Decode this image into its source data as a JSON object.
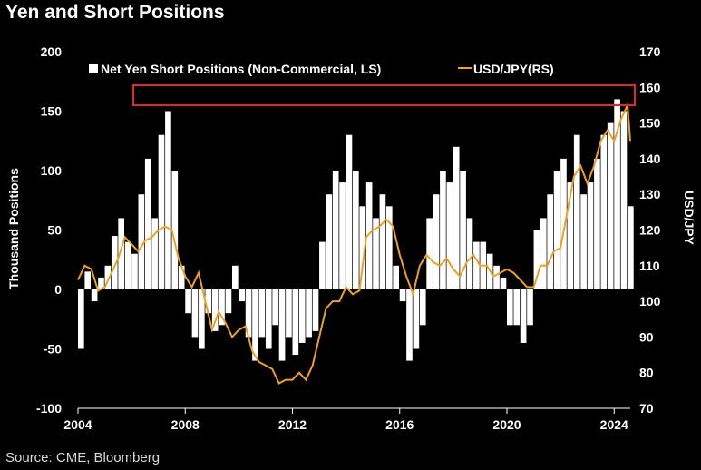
{
  "title": "Yen and Short Positions",
  "source": "Source: CME, Bloomberg",
  "colors": {
    "background": "#000000",
    "bars": "#ffffff",
    "line": "#f0a020",
    "highlight_box": "#e0282a"
  },
  "chart_data": {
    "type": "bar+line",
    "title": "Yen and Short Positions",
    "ylabel": "Thousand Positions",
    "y2label": "USD/JPY",
    "ylim": [
      -100,
      200
    ],
    "y_ticks": [
      "200",
      "150",
      "100",
      "50",
      "0",
      "-50",
      "-100"
    ],
    "y2lim": [
      70,
      170
    ],
    "y2_ticks": [
      "170",
      "160",
      "150",
      "140",
      "130",
      "120",
      "110",
      "100",
      "90",
      "80",
      "70"
    ],
    "xlim": [
      2004,
      2024.6
    ],
    "x_ticks": [
      "2004",
      "2008",
      "2012",
      "2016",
      "2020",
      "2024"
    ],
    "legend_position": "top",
    "grid": false,
    "series": [
      {
        "name": "Net Yen Short Positions (Non-Commercial, LS)",
        "type": "bar",
        "axis": "left",
        "x": [
          2004.0,
          2004.25,
          2004.5,
          2004.75,
          2005.0,
          2005.25,
          2005.5,
          2005.75,
          2006.0,
          2006.25,
          2006.5,
          2006.75,
          2007.0,
          2007.25,
          2007.5,
          2007.75,
          2008.0,
          2008.25,
          2008.5,
          2008.75,
          2009.0,
          2009.25,
          2009.5,
          2009.75,
          2010.0,
          2010.25,
          2010.5,
          2010.75,
          2011.0,
          2011.25,
          2011.5,
          2011.75,
          2012.0,
          2012.25,
          2012.5,
          2012.75,
          2013.0,
          2013.25,
          2013.5,
          2013.75,
          2014.0,
          2014.25,
          2014.5,
          2014.75,
          2015.0,
          2015.25,
          2015.5,
          2015.75,
          2016.0,
          2016.25,
          2016.5,
          2016.75,
          2017.0,
          2017.25,
          2017.5,
          2017.75,
          2018.0,
          2018.25,
          2018.5,
          2018.75,
          2019.0,
          2019.25,
          2019.5,
          2019.75,
          2020.0,
          2020.25,
          2020.5,
          2020.75,
          2021.0,
          2021.25,
          2021.5,
          2021.75,
          2022.0,
          2022.25,
          2022.5,
          2022.75,
          2023.0,
          2023.25,
          2023.5,
          2023.75,
          2024.0,
          2024.25,
          2024.5
        ],
        "values": [
          -50,
          15,
          -10,
          10,
          20,
          45,
          60,
          40,
          30,
          80,
          110,
          60,
          130,
          150,
          100,
          20,
          -20,
          -40,
          -50,
          -20,
          -35,
          -30,
          -20,
          20,
          -10,
          -40,
          -60,
          -40,
          -50,
          -30,
          -60,
          -40,
          -55,
          -45,
          -40,
          -35,
          40,
          80,
          100,
          90,
          130,
          100,
          70,
          90,
          60,
          80,
          70,
          20,
          -10,
          -60,
          -50,
          -30,
          60,
          80,
          100,
          90,
          120,
          100,
          60,
          40,
          40,
          30,
          20,
          10,
          -30,
          -30,
          -45,
          -30,
          50,
          60,
          80,
          100,
          110,
          90,
          130,
          80,
          90,
          110,
          130,
          140,
          160,
          150,
          70
        ]
      },
      {
        "name": "USD/JPY(RS)",
        "type": "line",
        "axis": "right",
        "x": [
          2004.0,
          2004.25,
          2004.5,
          2004.75,
          2005.0,
          2005.25,
          2005.5,
          2005.75,
          2006.0,
          2006.25,
          2006.5,
          2006.75,
          2007.0,
          2007.25,
          2007.5,
          2007.75,
          2008.0,
          2008.25,
          2008.5,
          2008.75,
          2009.0,
          2009.25,
          2009.5,
          2009.75,
          2010.0,
          2010.25,
          2010.5,
          2010.75,
          2011.0,
          2011.25,
          2011.5,
          2011.75,
          2012.0,
          2012.25,
          2012.5,
          2012.75,
          2013.0,
          2013.25,
          2013.5,
          2013.75,
          2014.0,
          2014.25,
          2014.5,
          2014.75,
          2015.0,
          2015.25,
          2015.5,
          2015.75,
          2016.0,
          2016.25,
          2016.5,
          2016.75,
          2017.0,
          2017.25,
          2017.5,
          2017.75,
          2018.0,
          2018.25,
          2018.5,
          2018.75,
          2019.0,
          2019.25,
          2019.5,
          2019.75,
          2020.0,
          2020.25,
          2020.5,
          2020.75,
          2021.0,
          2021.25,
          2021.5,
          2021.75,
          2022.0,
          2022.25,
          2022.5,
          2022.75,
          2023.0,
          2023.25,
          2023.5,
          2023.75,
          2024.0,
          2024.25,
          2024.5,
          2024.6
        ],
        "values": [
          106,
          110,
          109,
          103,
          104,
          108,
          112,
          118,
          116,
          114,
          117,
          118,
          120,
          121,
          120,
          112,
          107,
          104,
          108,
          100,
          92,
          97,
          94,
          90,
          92,
          93,
          86,
          83,
          82,
          81,
          77,
          78,
          78,
          80,
          78,
          82,
          90,
          98,
          100,
          100,
          104,
          102,
          103,
          118,
          120,
          121,
          123,
          121,
          113,
          107,
          102,
          110,
          113,
          111,
          110,
          112,
          109,
          107,
          111,
          113,
          110,
          110,
          107,
          108,
          109,
          108,
          106,
          104,
          104,
          110,
          110,
          114,
          115,
          125,
          135,
          138,
          133,
          138,
          145,
          148,
          145,
          151,
          155,
          145
        ]
      }
    ]
  }
}
